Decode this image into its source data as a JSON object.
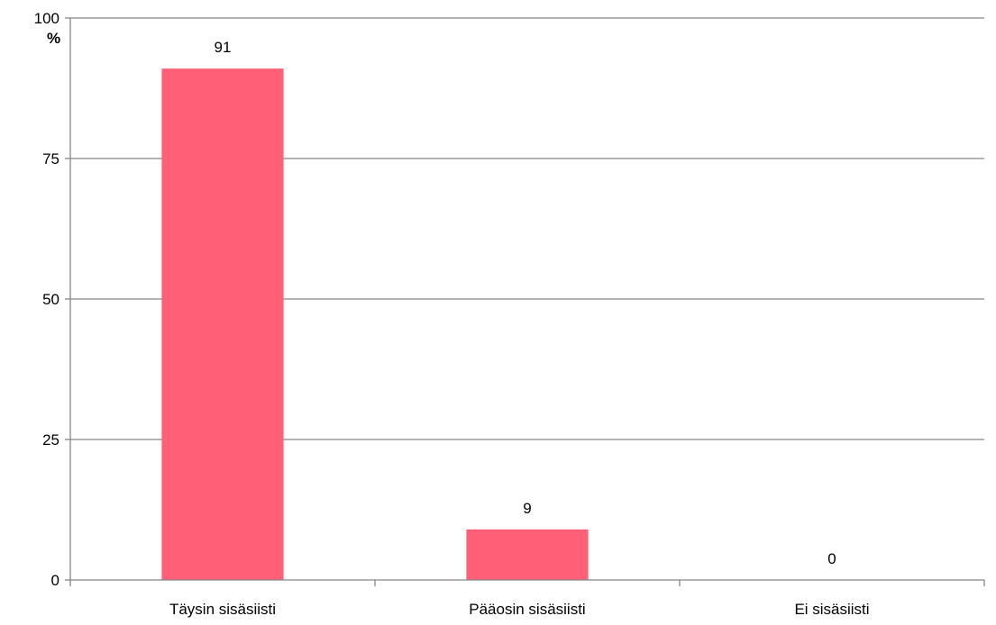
{
  "chart_data": {
    "type": "bar",
    "title": "",
    "xlabel": "",
    "ylabel": "%",
    "categories": [
      "Täysin sisäsiisti",
      "Pääosin sisäsiisti",
      "Ei sisäsiisti"
    ],
    "values": [
      91,
      9,
      0
    ],
    "data_labels": [
      "91",
      "9",
      "0"
    ],
    "ylim": [
      0,
      100
    ],
    "yticks": [
      0,
      25,
      50,
      75,
      100
    ],
    "ytick_labels": [
      "0",
      "25",
      "50",
      "75",
      "100"
    ],
    "grid": true,
    "legend": "none",
    "colors": {
      "bar": "#ff5f77",
      "grid": "#868686",
      "axis": "#868686"
    }
  }
}
